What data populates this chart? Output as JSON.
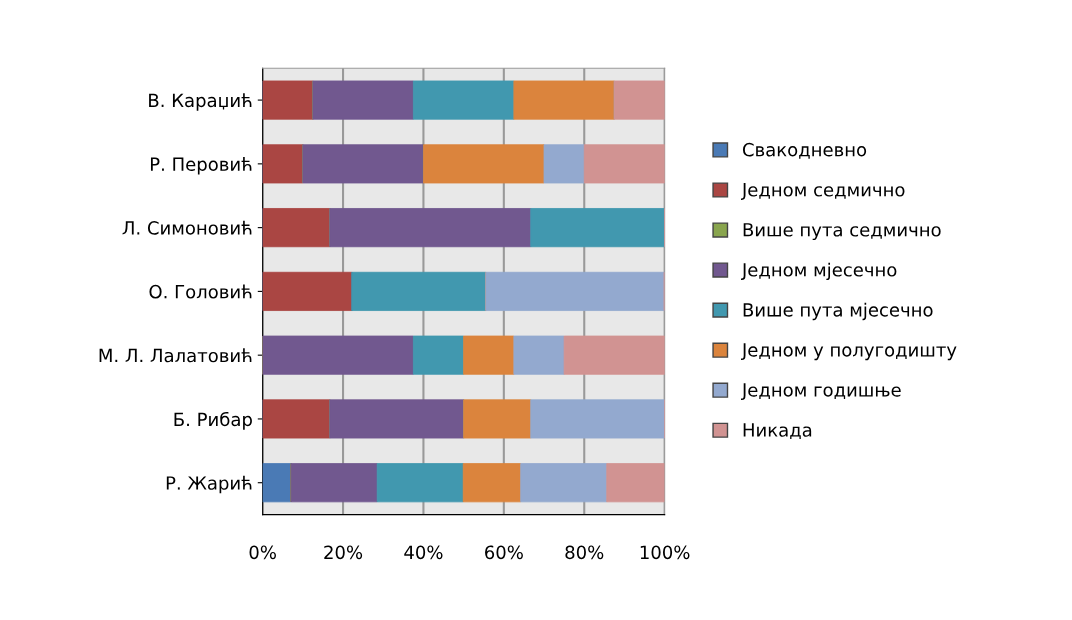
{
  "chart_data": {
    "type": "bar",
    "orientation": "horizontal",
    "stacked": true,
    "categories": [
      "В. Караџић",
      "Р. Перовић",
      "Л. Симоновић",
      "О. Головић",
      "М. Л. Лалатовић",
      "Б. Рибар",
      "Р. Жарић"
    ],
    "series": [
      {
        "name": "Свакодневно",
        "color": "#4a7ab5",
        "values": [
          0,
          0,
          0,
          0,
          0,
          0,
          7.1
        ]
      },
      {
        "name": "Једном седмично",
        "color": "#aa4643",
        "values": [
          12.5,
          10,
          16.7,
          22.2,
          0,
          16.7,
          0
        ]
      },
      {
        "name": "Више пута седмично",
        "color": "#89a54e",
        "values": [
          0,
          0,
          0,
          0,
          0,
          0,
          0
        ]
      },
      {
        "name": "Једном мјесечно",
        "color": "#71588f",
        "values": [
          25,
          30,
          50,
          0,
          37.5,
          33.3,
          21.4
        ]
      },
      {
        "name": "Више пута мјесечно",
        "color": "#4198af",
        "values": [
          25,
          0,
          33.3,
          33.3,
          12.5,
          0,
          21.4
        ]
      },
      {
        "name": "Једном у полугодишту",
        "color": "#db843d",
        "values": [
          25,
          30,
          0,
          0,
          12.5,
          16.7,
          14.3
        ]
      },
      {
        "name": "Једном годишње",
        "color": "#93a9cf",
        "values": [
          0,
          10,
          0,
          44.4,
          12.5,
          33.3,
          21.4
        ]
      },
      {
        "name": "Никада",
        "color": "#d19392",
        "values": [
          12.5,
          20,
          0,
          0,
          25,
          0,
          14.3
        ]
      }
    ],
    "xlim": [
      0,
      100
    ],
    "xticks": [
      {
        "value": 0,
        "label": "0%"
      },
      {
        "value": 20,
        "label": "20%"
      },
      {
        "value": 40,
        "label": "40%"
      },
      {
        "value": 60,
        "label": "60%"
      },
      {
        "value": 80,
        "label": "80%"
      },
      {
        "value": 100,
        "label": "100%"
      }
    ],
    "grid": "x",
    "legend": "right"
  }
}
